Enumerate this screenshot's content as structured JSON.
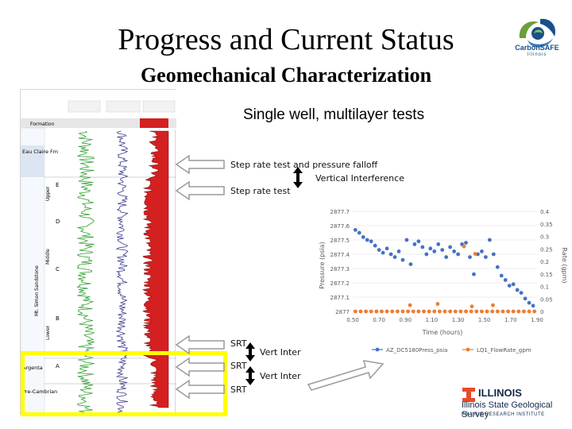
{
  "slide": {
    "title": "Progress and Current Status",
    "subtitle": "Geomechanical Characterization",
    "section_heading": "Single well, multilayer tests"
  },
  "logos": {
    "carbonsafe_text": "CarbonSAFE",
    "carbonsafe_sub": "Illinois",
    "illinois": "ILLINOIS",
    "survey": "Illinois State Geological Survey",
    "institute": "PRAIRIE RESEARCH INSTITUTE",
    "illinois_color": "#e84a27",
    "carbonsafe_color": "#1a4f8a"
  },
  "annotations": {
    "step_rate_falloff": "Step rate test and pressure falloff",
    "vertical_interference": "Vertical Interference",
    "step_rate": "Step rate test",
    "srt_1": "SRT",
    "srt_2": "SRT",
    "srt_3": "SRT",
    "vert_inter_1": "Vert Inter",
    "vert_inter_2": "Vert Inter"
  },
  "well_log": {
    "formation_header": "Formation",
    "formations": [
      "Eau Claire Fm",
      "Upper",
      "Middle",
      "Lower",
      "Argenta",
      "Pre-Cambrian"
    ],
    "zone_letters": [
      "E",
      "D",
      "C",
      "B",
      "A"
    ],
    "vertical_label": "Mt. Simon Sandstone",
    "track_colors": [
      "#2e9e2e",
      "#3a3a8c",
      "#c0141c"
    ]
  },
  "chart_data": {
    "type": "scatter",
    "xlabel": "Time (hours)",
    "ylabel": "Pressure (psia)",
    "y2label": "Rate (gpm)",
    "xlim": [
      0.5,
      1.9
    ],
    "ylim": [
      2877,
      2877.7
    ],
    "y2lim": [
      0,
      0.4
    ],
    "x_ticks": [
      "0.50",
      "0.70",
      "0.90",
      "1.10",
      "1.30",
      "1.50",
      "1.70",
      "1.90"
    ],
    "y_ticks": [
      "2877",
      "2877.1",
      "2877.2",
      "2877.3",
      "2877.4",
      "2877.5",
      "2877.6",
      "2877.7"
    ],
    "y2_ticks": [
      "0",
      "0.05",
      "0.1",
      "0.15",
      "0.2",
      "0.25",
      "0.3",
      "0.35",
      "0.4"
    ],
    "legend_position": "bottom",
    "series": [
      {
        "name": "AZ_DC5180Press_psia",
        "axis": "left",
        "color": "#4472c4",
        "x": [
          0.52,
          0.55,
          0.58,
          0.61,
          0.64,
          0.67,
          0.7,
          0.73,
          0.76,
          0.79,
          0.82,
          0.85,
          0.88,
          0.91,
          0.94,
          0.97,
          1.0,
          1.03,
          1.06,
          1.09,
          1.12,
          1.15,
          1.18,
          1.21,
          1.24,
          1.27,
          1.3,
          1.33,
          1.36,
          1.39,
          1.42,
          1.45,
          1.48,
          1.51,
          1.54,
          1.57,
          1.6,
          1.63,
          1.66,
          1.69,
          1.72,
          1.75,
          1.78,
          1.81,
          1.84,
          1.87
        ],
        "values": [
          2877.57,
          2877.55,
          2877.52,
          2877.5,
          2877.49,
          2877.46,
          2877.43,
          2877.41,
          2877.44,
          2877.4,
          2877.38,
          2877.42,
          2877.36,
          2877.5,
          2877.33,
          2877.47,
          2877.49,
          2877.45,
          2877.4,
          2877.44,
          2877.42,
          2877.47,
          2877.43,
          2877.38,
          2877.45,
          2877.42,
          2877.4,
          2877.47,
          2877.48,
          2877.38,
          2877.26,
          2877.4,
          2877.42,
          2877.38,
          2877.5,
          2877.4,
          2877.31,
          2877.25,
          2877.22,
          2877.18,
          2877.19,
          2877.15,
          2877.13,
          2877.09,
          2877.06,
          2877.04
        ]
      },
      {
        "name": "LQ1_FlowRate_gpm",
        "axis": "right",
        "color": "#ed7d31",
        "x": [
          0.52,
          0.56,
          0.6,
          0.64,
          0.68,
          0.72,
          0.76,
          0.8,
          0.84,
          0.88,
          0.92,
          0.96,
          1.0,
          1.04,
          1.08,
          1.12,
          1.16,
          1.2,
          1.24,
          1.28,
          1.32,
          1.36,
          1.4,
          1.44,
          1.48,
          1.52,
          1.56,
          1.6,
          1.64,
          1.68,
          1.72,
          1.76,
          1.8,
          1.84,
          1.88,
          0.935,
          1.145,
          1.405,
          1.565
        ],
        "values": [
          0.0,
          0.0,
          0.0,
          0.0,
          0.0,
          0.0,
          0.0,
          0.0,
          0.0,
          0.0,
          0.0,
          0.0,
          0.0,
          0.0,
          0.0,
          0.0,
          0.0,
          0.0,
          0.0,
          0.0,
          0.0,
          0.0,
          0.0,
          0.0,
          0.0,
          0.0,
          0.0,
          0.0,
          0.0,
          0.0,
          0.0,
          0.0,
          0.0,
          0.0,
          0.0,
          0.025,
          0.03,
          0.02,
          0.025
        ]
      },
      {
        "name": "LQ1_FlowRate_gpm",
        "axis": "right",
        "color": "#ed7d31",
        "x": [
          1.345,
          1.43
        ],
        "values": [
          0.26,
          0.23
        ]
      }
    ]
  }
}
